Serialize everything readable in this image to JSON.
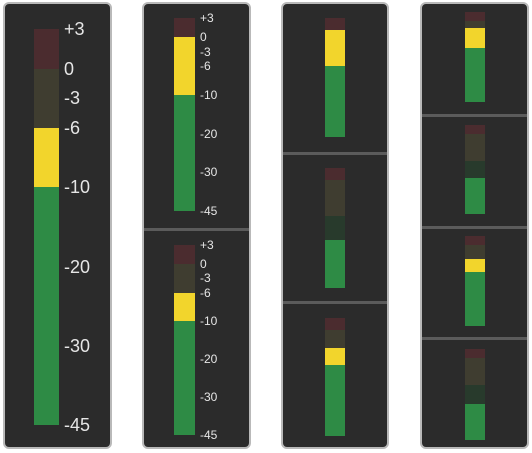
{
  "colors": {
    "green": "#2e8b45",
    "yellow": "#f2d52c",
    "dim_green": "#283a2c",
    "dim_yellow": "#3f3d30",
    "dim_red": "#4b2c2f"
  },
  "scale_labels": [
    "+3",
    "0",
    "-3",
    "-6",
    "-10",
    "-20",
    "-30",
    "-45"
  ],
  "meters": {
    "large": {
      "peak_db": -10,
      "level_db": -6
    },
    "medium": [
      {
        "peak_db": -10,
        "level_db": 0
      },
      {
        "peak_db": -10,
        "level_db": -6
      }
    ],
    "small": [
      {
        "peak_db": -10,
        "level_db": 0
      },
      {
        "peak_db": -20,
        "level_db": null
      },
      {
        "peak_db": -10,
        "level_db": -6
      }
    ],
    "tiny": [
      {
        "peak_db": -10,
        "level_db": -3
      },
      {
        "peak_db": -20,
        "level_db": null
      },
      {
        "peak_db": -10,
        "level_db": -6
      },
      {
        "peak_db": -20,
        "level_db": null
      }
    ]
  }
}
